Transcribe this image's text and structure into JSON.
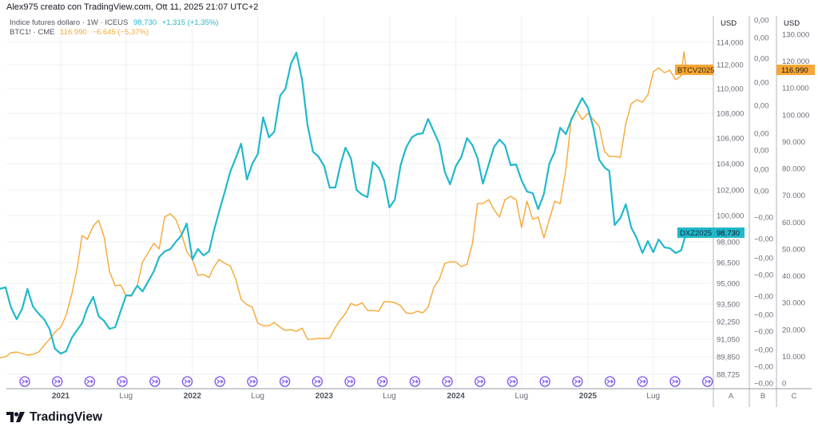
{
  "header": {
    "caption": "Alex975 creato con TradingView.com, Ott 11, 2025 21:07 UTC+2"
  },
  "legend": [
    {
      "name": "Indice futures dollaro · 1W · ICEUS",
      "price": "98,730",
      "change": "+1,315 (+1,35%)",
      "color": "#22b8cc"
    },
    {
      "name": "BTC1! · CME",
      "price": "116.990",
      "change": "−6.645 (−5,37%)",
      "color": "#f7a733"
    }
  ],
  "axes": {
    "a": {
      "unit": "USD",
      "letter": "A",
      "ticks": [
        {
          "label": "114,000",
          "v": 114
        },
        {
          "label": "112,000",
          "v": 112
        },
        {
          "label": "110,000",
          "v": 110
        },
        {
          "label": "108,000",
          "v": 108
        },
        {
          "label": "106,000",
          "v": 106
        },
        {
          "label": "104,000",
          "v": 104
        },
        {
          "label": "102,000",
          "v": 102
        },
        {
          "label": "100,000",
          "v": 100
        },
        {
          "label": "98,000",
          "v": 98
        },
        {
          "label": "96,500",
          "v": 96.5
        },
        {
          "label": "95,000",
          "v": 95
        },
        {
          "label": "93,500",
          "v": 93.5
        },
        {
          "label": "92,250",
          "v": 92.25
        },
        {
          "label": "91,050",
          "v": 91.05
        },
        {
          "label": "89,850",
          "v": 89.85
        },
        {
          "label": "88,725",
          "v": 88.725
        }
      ]
    },
    "b": {
      "letter": "B",
      "labels": [
        "0,00",
        "0,00",
        "0,00",
        "0,00",
        "0,00",
        "0,00",
        "0,00",
        "0,00",
        "0,00",
        "−0,00",
        "−0,00",
        "−0,00",
        "−0,00",
        "−0,00",
        "−0,00",
        "−0,00",
        "−0,00",
        "−0,00",
        "−0,00"
      ]
    },
    "c": {
      "unit": "USD",
      "letter": "C",
      "ticks": [
        "130.000",
        "120.000",
        "110.000",
        "100.000",
        "90.000",
        "80.000",
        "70.000",
        "60.000",
        "50.000",
        "40.000",
        "30.000",
        "20.000",
        "10.000",
        "0"
      ],
      "range": [
        0,
        130000
      ]
    },
    "x": {
      "labels": [
        {
          "label": "2021",
          "date": "2021-01-01",
          "year": true
        },
        {
          "label": "Lug",
          "date": "2021-07-01",
          "year": false
        },
        {
          "label": "2022",
          "date": "2022-01-01",
          "year": true
        },
        {
          "label": "Lug",
          "date": "2022-07-01",
          "year": false
        },
        {
          "label": "2023",
          "date": "2023-01-01",
          "year": true
        },
        {
          "label": "Lug",
          "date": "2023-07-01",
          "year": false
        },
        {
          "label": "2024",
          "date": "2024-01-01",
          "year": true
        },
        {
          "label": "Lug",
          "date": "2024-07-01",
          "year": false
        },
        {
          "label": "2025",
          "date": "2025-01-01",
          "year": true
        },
        {
          "label": "Lug",
          "date": "2025-07-01",
          "year": false
        }
      ]
    }
  },
  "price_labels": {
    "dxy": {
      "symbol": "DXZ2025",
      "value": "98,730"
    },
    "btc": {
      "symbol": "BTCV2025",
      "value": "116.990"
    }
  },
  "event_icon": "roll-arrow-circle-icon",
  "footer": {
    "brand": "TradingView"
  },
  "chart_data": {
    "type": "line",
    "grid": true,
    "series": [
      {
        "name": "Indice futures dollaro",
        "axis": "A",
        "color": "#22b8cc",
        "x": [
          "2020-07-16",
          "2020-08-01",
          "2020-08-16",
          "2020-09-01",
          "2020-09-16",
          "2020-10-01",
          "2020-10-16",
          "2020-11-01",
          "2020-11-16",
          "2020-12-01",
          "2020-12-16",
          "2021-01-01",
          "2021-01-16",
          "2021-02-01",
          "2021-02-16",
          "2021-03-01",
          "2021-03-16",
          "2021-04-01",
          "2021-04-16",
          "2021-05-01",
          "2021-05-16",
          "2021-06-01",
          "2021-06-16",
          "2021-07-01",
          "2021-07-16",
          "2021-08-01",
          "2021-08-16",
          "2021-09-01",
          "2021-09-16",
          "2021-10-01",
          "2021-10-16",
          "2021-11-01",
          "2021-11-16",
          "2021-12-01",
          "2021-12-16",
          "2022-01-01",
          "2022-01-16",
          "2022-02-01",
          "2022-02-16",
          "2022-03-01",
          "2022-03-16",
          "2022-04-01",
          "2022-04-16",
          "2022-05-01",
          "2022-05-16",
          "2022-06-01",
          "2022-06-16",
          "2022-07-01",
          "2022-07-16",
          "2022-08-01",
          "2022-08-16",
          "2022-09-01",
          "2022-09-16",
          "2022-10-01",
          "2022-10-16",
          "2022-11-01",
          "2022-11-16",
          "2022-12-01",
          "2022-12-16",
          "2023-01-01",
          "2023-01-16",
          "2023-02-01",
          "2023-02-16",
          "2023-03-01",
          "2023-03-16",
          "2023-04-01",
          "2023-04-16",
          "2023-05-01",
          "2023-05-16",
          "2023-06-01",
          "2023-06-16",
          "2023-07-01",
          "2023-07-16",
          "2023-08-01",
          "2023-08-16",
          "2023-09-01",
          "2023-09-16",
          "2023-10-01",
          "2023-10-16",
          "2023-11-01",
          "2023-11-16",
          "2023-12-01",
          "2023-12-16",
          "2024-01-01",
          "2024-01-16",
          "2024-02-01",
          "2024-02-16",
          "2024-03-01",
          "2024-03-16",
          "2024-04-01",
          "2024-04-16",
          "2024-05-01",
          "2024-05-16",
          "2024-06-01",
          "2024-06-16",
          "2024-07-01",
          "2024-07-16",
          "2024-08-01",
          "2024-08-16",
          "2024-09-01",
          "2024-09-16",
          "2024-10-01",
          "2024-10-16",
          "2024-11-01",
          "2024-11-16",
          "2024-12-01",
          "2024-12-16",
          "2025-01-01",
          "2025-01-16",
          "2025-02-01",
          "2025-02-16",
          "2025-03-01",
          "2025-03-16",
          "2025-04-01",
          "2025-04-16",
          "2025-05-01",
          "2025-05-16",
          "2025-06-01",
          "2025-06-16",
          "2025-07-01",
          "2025-07-16",
          "2025-08-01",
          "2025-08-16",
          "2025-09-01",
          "2025-09-16",
          "2025-10-01"
        ],
        "y": [
          94.6,
          94.71,
          93.27,
          92.42,
          93.16,
          94.6,
          93.33,
          92.82,
          92.42,
          91.76,
          90.4,
          90.07,
          90.23,
          91.16,
          91.7,
          92.14,
          93.22,
          94.02,
          92.65,
          92.31,
          91.76,
          91.87,
          92.99,
          94.13,
          94.13,
          94.83,
          94.42,
          95.17,
          95.87,
          96.9,
          97.31,
          97.48,
          98.0,
          98.48,
          99.39,
          96.73,
          97.48,
          97.02,
          97.31,
          98.79,
          100.31,
          101.88,
          103.39,
          104.44,
          105.56,
          102.79,
          104.0,
          104.75,
          107.68,
          106.06,
          106.52,
          109.42,
          110.0,
          112.07,
          113.07,
          110.73,
          107.03,
          104.94,
          104.56,
          103.82,
          102.18,
          102.18,
          104.0,
          105.25,
          104.44,
          102.0,
          101.63,
          101.44,
          104.12,
          103.7,
          102.73,
          100.63,
          101.25,
          103.88,
          105.25,
          106.06,
          106.32,
          106.39,
          107.55,
          106.52,
          105.56,
          103.39,
          102.42,
          103.82,
          104.5,
          106.0,
          105.44,
          104.44,
          102.48,
          103.94,
          105.31,
          105.88,
          105.44,
          103.88,
          103.94,
          102.73,
          101.88,
          101.75,
          100.5,
          101.69,
          104.0,
          104.94,
          106.84,
          106.32,
          107.48,
          108.39,
          109.23,
          108.45,
          106.84,
          104.31,
          103.7,
          103.45,
          99.27,
          99.82,
          100.88,
          99.09,
          98.3,
          97.19,
          98.06,
          97.25,
          98.18,
          97.6,
          97.54,
          97.19,
          97.37,
          98.73
        ]
      },
      {
        "name": "BTC1!",
        "axis": "C",
        "color": "#f7a733",
        "x": [
          "2020-07-16",
          "2020-08-01",
          "2020-08-16",
          "2020-09-01",
          "2020-09-16",
          "2020-10-01",
          "2020-10-16",
          "2020-11-01",
          "2020-11-16",
          "2020-12-01",
          "2020-12-16",
          "2021-01-01",
          "2021-01-16",
          "2021-02-01",
          "2021-02-16",
          "2021-03-01",
          "2021-03-16",
          "2021-04-01",
          "2021-04-16",
          "2021-05-01",
          "2021-05-16",
          "2021-06-01",
          "2021-06-16",
          "2021-07-01",
          "2021-07-16",
          "2021-08-01",
          "2021-08-16",
          "2021-09-01",
          "2021-09-16",
          "2021-10-01",
          "2021-10-16",
          "2021-11-01",
          "2021-11-16",
          "2021-12-01",
          "2021-12-16",
          "2022-01-01",
          "2022-01-16",
          "2022-02-01",
          "2022-02-16",
          "2022-03-01",
          "2022-03-16",
          "2022-04-01",
          "2022-04-16",
          "2022-05-01",
          "2022-05-16",
          "2022-06-01",
          "2022-06-16",
          "2022-07-01",
          "2022-07-16",
          "2022-08-01",
          "2022-08-16",
          "2022-09-01",
          "2022-09-16",
          "2022-10-01",
          "2022-10-16",
          "2022-11-01",
          "2022-11-16",
          "2022-12-01",
          "2022-12-16",
          "2023-01-01",
          "2023-01-16",
          "2023-02-01",
          "2023-02-16",
          "2023-03-01",
          "2023-03-16",
          "2023-04-01",
          "2023-04-16",
          "2023-05-01",
          "2023-05-16",
          "2023-06-01",
          "2023-06-16",
          "2023-07-01",
          "2023-07-16",
          "2023-08-01",
          "2023-08-16",
          "2023-09-01",
          "2023-09-16",
          "2023-10-01",
          "2023-10-16",
          "2023-11-01",
          "2023-11-16",
          "2023-12-01",
          "2023-12-16",
          "2024-01-01",
          "2024-01-16",
          "2024-02-01",
          "2024-02-16",
          "2024-03-01",
          "2024-03-16",
          "2024-04-01",
          "2024-04-16",
          "2024-05-01",
          "2024-05-16",
          "2024-06-01",
          "2024-06-16",
          "2024-07-01",
          "2024-07-16",
          "2024-08-01",
          "2024-08-16",
          "2024-09-01",
          "2024-09-16",
          "2024-10-01",
          "2024-10-16",
          "2024-11-01",
          "2024-11-16",
          "2024-12-01",
          "2024-12-16",
          "2025-01-01",
          "2025-01-16",
          "2025-02-01",
          "2025-02-16",
          "2025-03-01",
          "2025-03-16",
          "2025-04-01",
          "2025-04-16",
          "2025-05-01",
          "2025-05-16",
          "2025-06-01",
          "2025-06-16",
          "2025-07-01",
          "2025-07-16",
          "2025-08-01",
          "2025-08-16",
          "2025-09-01",
          "2025-09-16",
          "2025-09-24",
          "2025-10-01"
        ],
        "y": [
          9500,
          9800,
          11300,
          11600,
          11000,
          10400,
          10700,
          11600,
          14000,
          16400,
          19000,
          20800,
          25300,
          33300,
          43100,
          55000,
          53600,
          58600,
          60700,
          54700,
          41700,
          36300,
          36600,
          32700,
          32400,
          36300,
          45200,
          48800,
          52100,
          50000,
          61900,
          63100,
          61000,
          55900,
          49100,
          46100,
          40200,
          40500,
          39300,
          43100,
          46100,
          44600,
          43700,
          38700,
          31200,
          29200,
          28300,
          22300,
          21400,
          21400,
          22600,
          20800,
          19600,
          19900,
          19300,
          20500,
          16400,
          16400,
          16700,
          16700,
          16700,
          20800,
          23800,
          25900,
          29700,
          28900,
          30000,
          27100,
          27100,
          26800,
          30300,
          30300,
          30000,
          28900,
          26200,
          25900,
          26800,
          26200,
          28300,
          35700,
          38700,
          44600,
          45200,
          45200,
          43400,
          44300,
          52100,
          66900,
          66900,
          68400,
          64600,
          61900,
          68400,
          69600,
          68400,
          58000,
          67800,
          61000,
          61900,
          54100,
          61000,
          67800,
          66900,
          79700,
          98800,
          101700,
          98200,
          100600,
          98200,
          95800,
          86300,
          84500,
          84500,
          84200,
          96700,
          104100,
          105600,
          104700,
          107400,
          116000,
          117500,
          115700,
          116600,
          113100,
          114500,
          123500,
          116990
        ]
      }
    ]
  }
}
